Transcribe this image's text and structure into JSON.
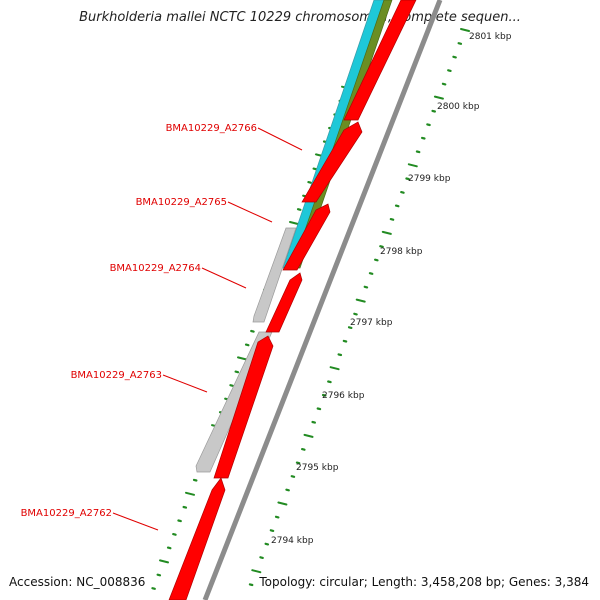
{
  "title": "Burkholderia mallei NCTC 10229 chromosome I, complete sequen...",
  "accession": "Accession: NC_008836",
  "topology": "Topology: circular; Length: 3,458,208 bp; Genes: 3,384",
  "colors": {
    "forward_gene": "#ff0000",
    "reverse_gene": "#c8c8c8",
    "feature_olive": "#6b8e23",
    "feature_cyan": "#1ec8d8",
    "backbone": "#8c8c8c",
    "tick": "#228b22",
    "label": "#e00000"
  },
  "gene_labels": [
    {
      "name": "BMA10229_A2766"
    },
    {
      "name": "BMA10229_A2765"
    },
    {
      "name": "BMA10229_A2764"
    },
    {
      "name": "BMA10229_A2763"
    },
    {
      "name": "BMA10229_A2762"
    }
  ],
  "kbp_ticks": [
    "2801 kbp",
    "2800 kbp",
    "2799 kbp",
    "2798 kbp",
    "2797 kbp",
    "2796 kbp",
    "2795 kbp",
    "2794 kbp"
  ]
}
